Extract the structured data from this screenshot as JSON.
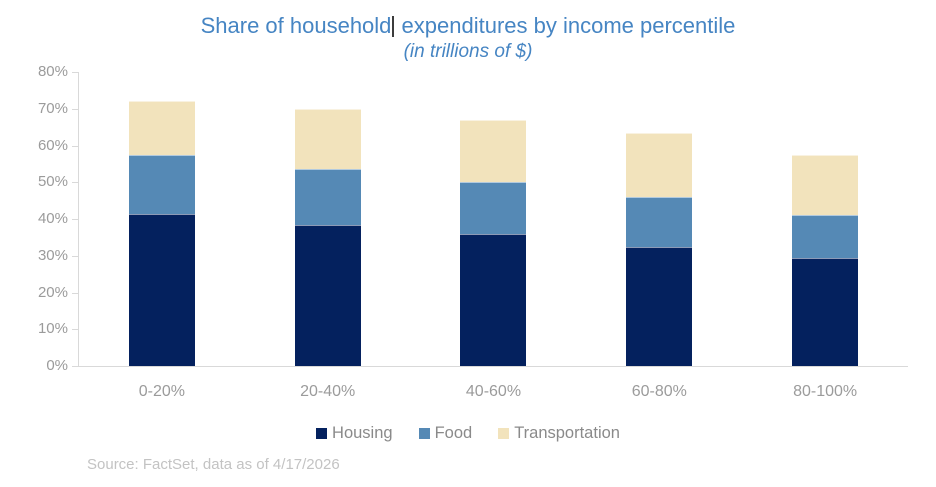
{
  "title": {
    "part1": "Share of household",
    "part2": " expenditures by income percentile",
    "subtitle": "(in trillions of $)"
  },
  "source_note": "Source: FactSet, data as of 4/17/2026",
  "colors": {
    "title_text": "#4685c3",
    "axis_line": "#d9d9d9",
    "axis_label_text": "#9b9b9b",
    "legend_text": "#8a8a8a",
    "source_text": "#c3c3c3",
    "housing": "#04215e",
    "food": "#5589b5",
    "transportation": "#f2e3bc"
  },
  "axis": {
    "ytick_labels": [
      "80%",
      "70%",
      "60%",
      "50%",
      "40%",
      "30%",
      "20%",
      "10%",
      "0%"
    ]
  },
  "chart_data": {
    "type": "bar",
    "stacked": true,
    "title": "Share of household expenditures by income percentile",
    "subtitle": "(in trillions of $)",
    "categories": [
      "0-20%",
      "20-40%",
      "40-60%",
      "60-80%",
      "80-100%"
    ],
    "series": [
      {
        "name": "Housing",
        "color": "#04215e",
        "values": [
          41.5,
          38.5,
          36.0,
          32.5,
          29.5
        ]
      },
      {
        "name": "Food",
        "color": "#5589b5",
        "values": [
          16.0,
          15.0,
          14.0,
          13.5,
          11.5
        ]
      },
      {
        "name": "Transportation",
        "color": "#f2e3bc",
        "values": [
          14.5,
          16.5,
          17.0,
          17.5,
          16.5
        ]
      }
    ],
    "stack_totals": [
      72.0,
      70.0,
      67.0,
      63.5,
      57.5
    ],
    "xlabel": "",
    "ylabel": "",
    "ylim": [
      0,
      80
    ],
    "ytick_step": 10,
    "ytick_format": "percent",
    "grid": false,
    "legend_position": "bottom"
  }
}
